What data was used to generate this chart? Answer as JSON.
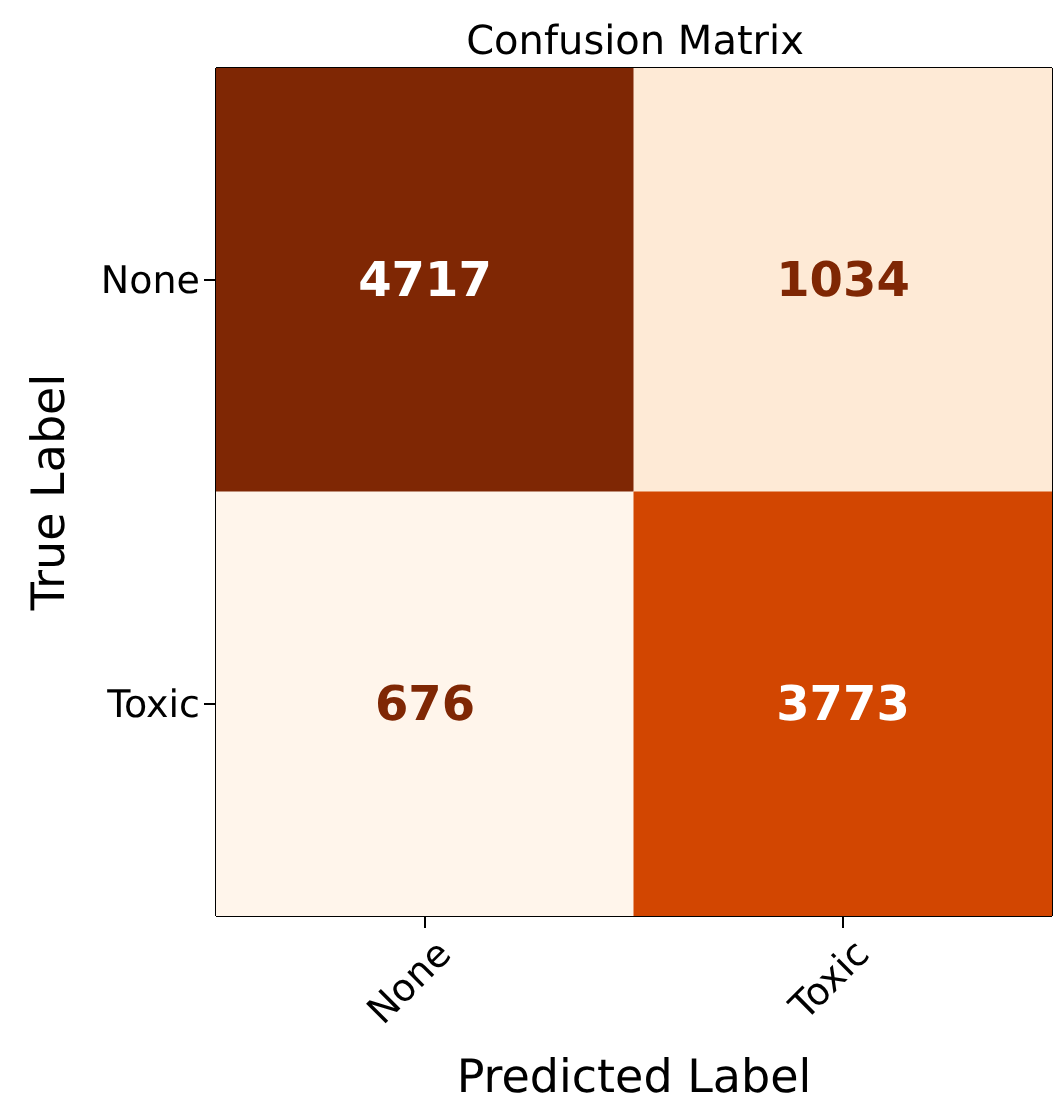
{
  "chart_data": {
    "type": "heatmap",
    "title": "Confusion Matrix",
    "xlabel": "Predicted Label",
    "ylabel": "True Label",
    "categories": [
      "None",
      "Toxic"
    ],
    "y_categories": [
      "None",
      "Toxic"
    ],
    "cells": [
      [
        4717,
        1034
      ],
      [
        676,
        3773
      ]
    ],
    "data_labels": true
  }
}
